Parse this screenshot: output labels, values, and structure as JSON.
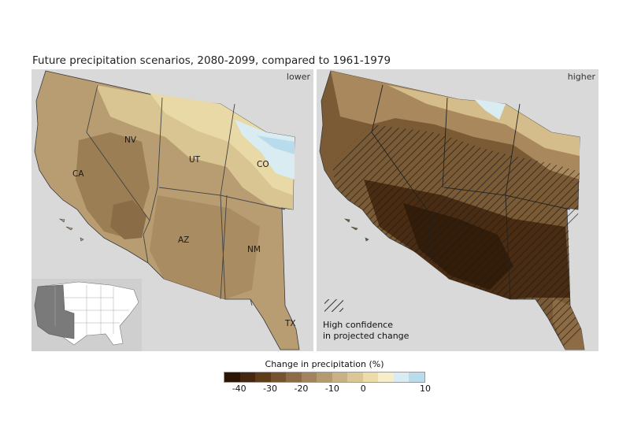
{
  "title": "Future precipitation scenarios, 2080-2099, compared to 1961-1979",
  "panels": {
    "left": {
      "scenario": "lower"
    },
    "right": {
      "scenario": "higher"
    }
  },
  "states": [
    "CA",
    "NV",
    "UT",
    "CO",
    "AZ",
    "NM",
    "TX"
  ],
  "hatch_legend": {
    "line1": "High confidence",
    "line2": "in projected change"
  },
  "legend": {
    "title": "Change in precipitation (%)",
    "ticks": [
      "-40",
      "-30",
      "-20",
      "-10",
      "0",
      "10"
    ],
    "colors": [
      "#2b1606",
      "#46270e",
      "#5e3c1a",
      "#75532d",
      "#8c6b45",
      "#a2845c",
      "#b59a6f",
      "#c8b184",
      "#dbc796",
      "#ecdcaa",
      "#f5eec8",
      "#d8ecf2",
      "#b9dcec"
    ]
  },
  "colors": {
    "panel_bg": "#d9d9d9",
    "outline": "#3a3a3a"
  }
}
